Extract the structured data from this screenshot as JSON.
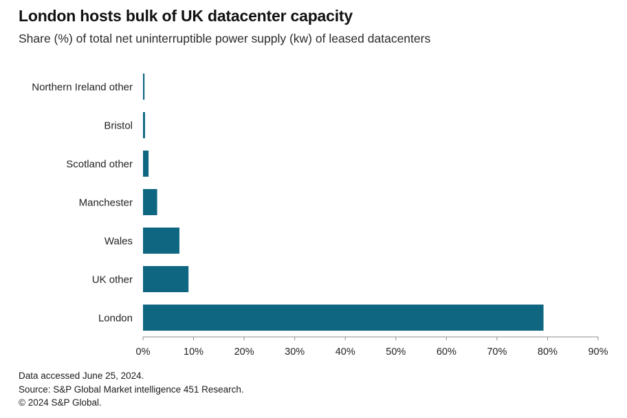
{
  "header": {
    "title": "London hosts bulk of UK datacenter capacity",
    "subtitle": "Share (%) of total net uninterruptible power supply (kw) of leased datacenters"
  },
  "footer": {
    "line1": "Data accessed June 25, 2024.",
    "line2": "Source: S&P Global Market intelligence 451 Research.",
    "line3": "© 2024 S&P Global."
  },
  "colors": {
    "bar": "#0f6680",
    "axis": "#8c8c8c"
  },
  "chart_data": {
    "type": "bar",
    "orientation": "horizontal",
    "title": "London hosts bulk of UK datacenter capacity",
    "subtitle": "Share (%) of total net uninterruptible power supply (kw) of leased datacenters",
    "categories": [
      "Northern Ireland other",
      "Bristol",
      "Scotland other",
      "Manchester",
      "Wales",
      "UK other",
      "London"
    ],
    "values": [
      0.3,
      0.4,
      1.1,
      2.8,
      7.2,
      9.0,
      79.2
    ],
    "xlabel": "",
    "ylabel": "",
    "xlim": [
      0,
      90
    ],
    "xticks": [
      0,
      10,
      20,
      30,
      40,
      50,
      60,
      70,
      80,
      90
    ],
    "xtick_labels": [
      "0%",
      "10%",
      "20%",
      "30%",
      "40%",
      "50%",
      "60%",
      "70%",
      "80%",
      "90%"
    ],
    "grid": false,
    "legend": "none"
  }
}
